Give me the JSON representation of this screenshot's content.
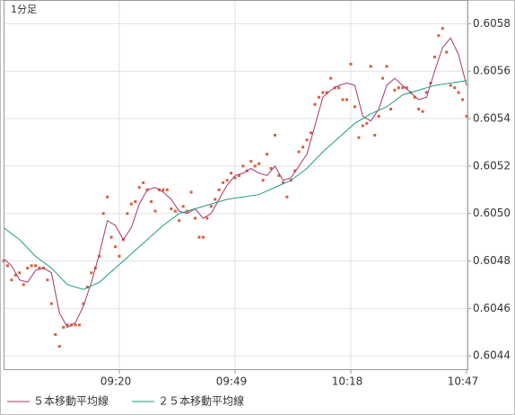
{
  "chart_data": {
    "type": "line",
    "title": "1分足",
    "title_color": "#3aa6dd",
    "xlim": [
      0,
      116
    ],
    "xticks": [
      {
        "value": 29,
        "label": "09:20"
      },
      {
        "value": 58,
        "label": "09:49"
      },
      {
        "value": 87,
        "label": "10:18"
      },
      {
        "value": 116,
        "label": "10:47"
      }
    ],
    "ylim": [
      0.60434,
      0.6059
    ],
    "yticks": [
      0.6044,
      0.6046,
      0.6048,
      {
        "value": 0.605,
        "label": "0.6050"
      },
      0.6052,
      0.6054,
      0.6056,
      0.6058
    ],
    "grid": true,
    "series": [
      {
        "mode": "markers",
        "color": "#d9603b",
        "x": [
          0,
          1,
          2,
          3,
          4,
          5,
          6,
          7,
          8,
          9,
          10,
          11,
          12,
          13,
          14,
          15,
          16,
          17,
          18,
          19,
          20,
          21,
          22,
          23,
          24,
          25,
          26,
          27,
          28,
          29,
          30,
          31,
          32,
          33,
          34,
          35,
          36,
          37,
          38,
          39,
          40,
          41,
          42,
          43,
          44,
          45,
          46,
          47,
          48,
          49,
          50,
          51,
          52,
          53,
          54,
          55,
          56,
          57,
          58,
          59,
          60,
          61,
          62,
          63,
          64,
          65,
          66,
          67,
          68,
          69,
          70,
          71,
          72,
          73,
          74,
          75,
          76,
          77,
          78,
          79,
          80,
          81,
          82,
          83,
          84,
          85,
          86,
          87,
          88,
          89,
          90,
          91,
          92,
          93,
          94,
          95,
          96,
          97,
          98,
          99,
          100,
          101,
          102,
          103,
          104,
          105,
          106,
          107,
          108,
          109,
          110,
          111,
          112,
          113,
          114,
          115,
          116
        ],
        "values": [
          0.6048,
          0.60478,
          0.60472,
          0.60474,
          0.60475,
          0.6047,
          0.60477,
          0.60478,
          0.60478,
          0.60477,
          0.60477,
          0.60472,
          0.60462,
          0.60449,
          0.60444,
          0.60452,
          0.60453,
          0.60453,
          0.60453,
          0.60453,
          0.60462,
          0.60469,
          0.60475,
          0.60477,
          0.60482,
          0.605,
          0.60507,
          0.6049,
          0.60486,
          0.60482,
          0.60489,
          0.605,
          0.60504,
          0.60505,
          0.60511,
          0.60513,
          0.6051,
          0.60505,
          0.60501,
          0.6051,
          0.6051,
          0.6051,
          0.60502,
          0.60501,
          0.60497,
          0.60503,
          0.60501,
          0.60509,
          0.60498,
          0.6049,
          0.6049,
          0.60498,
          0.60503,
          0.60506,
          0.6051,
          0.60513,
          0.60514,
          0.60517,
          0.60515,
          0.60516,
          0.6052,
          0.60518,
          0.60522,
          0.6052,
          0.60521,
          0.60514,
          0.60525,
          0.60519,
          0.60533,
          0.60516,
          0.60513,
          0.60507,
          0.60514,
          0.60518,
          0.60526,
          0.60528,
          0.60531,
          0.60534,
          0.60546,
          0.60549,
          0.60551,
          0.60551,
          0.60557,
          0.60553,
          0.60553,
          0.60548,
          0.60548,
          0.60563,
          0.60545,
          0.60532,
          0.60537,
          0.60538,
          0.60562,
          0.60533,
          0.60541,
          0.60557,
          0.60562,
          0.60544,
          0.60552,
          0.60553,
          0.60553,
          0.60553,
          0.60551,
          0.60549,
          0.60544,
          0.60543,
          0.60551,
          0.60555,
          0.60566,
          0.60575,
          0.60578,
          0.60568,
          0.60554,
          0.60553,
          0.60551,
          0.60548,
          0.60541
        ]
      },
      {
        "mode": "line",
        "name": "５本移動平均線",
        "color": "#a8346e",
        "x": [
          0,
          2,
          4,
          6,
          8,
          10,
          12,
          14,
          16,
          18,
          20,
          22,
          24,
          26,
          28,
          30,
          32,
          34,
          36,
          38,
          40,
          42,
          44,
          46,
          48,
          50,
          52,
          54,
          56,
          58,
          60,
          62,
          64,
          66,
          68,
          70,
          72,
          74,
          76,
          78,
          80,
          82,
          84,
          86,
          88,
          90,
          92,
          94,
          96,
          98,
          100,
          102,
          104,
          106,
          108,
          110,
          112,
          114,
          116
        ],
        "values": [
          0.60481,
          0.60478,
          0.60472,
          0.60471,
          0.60476,
          0.60477,
          0.60475,
          0.60458,
          0.60452,
          0.60454,
          0.60461,
          0.60471,
          0.60483,
          0.60497,
          0.60495,
          0.60489,
          0.60494,
          0.60504,
          0.6051,
          0.60511,
          0.60509,
          0.60506,
          0.60501,
          0.605,
          0.60502,
          0.60498,
          0.605,
          0.60506,
          0.60512,
          0.60516,
          0.60517,
          0.60519,
          0.60517,
          0.60516,
          0.6052,
          0.60514,
          0.60515,
          0.6052,
          0.60525,
          0.60537,
          0.60549,
          0.60552,
          0.60554,
          0.60555,
          0.60554,
          0.60541,
          0.60539,
          0.60544,
          0.60554,
          0.60557,
          0.60554,
          0.60551,
          0.60548,
          0.60549,
          0.6056,
          0.6057,
          0.60574,
          0.60567,
          0.60554
        ]
      },
      {
        "mode": "line",
        "name": "２５本移動平均線",
        "color": "#1d9e7e",
        "x": [
          0,
          4,
          8,
          12,
          16,
          20,
          24,
          28,
          32,
          36,
          40,
          44,
          48,
          52,
          56,
          60,
          64,
          68,
          72,
          76,
          80,
          84,
          88,
          92,
          96,
          100,
          104,
          108,
          112,
          116
        ],
        "values": [
          0.60494,
          0.60489,
          0.60482,
          0.60477,
          0.6047,
          0.60468,
          0.60471,
          0.60477,
          0.60483,
          0.60489,
          0.60495,
          0.605,
          0.60502,
          0.60504,
          0.60506,
          0.60507,
          0.60508,
          0.60511,
          0.60514,
          0.60519,
          0.60526,
          0.60532,
          0.60538,
          0.60542,
          0.60545,
          0.6055,
          0.60552,
          0.60554,
          0.60555,
          0.60556
        ]
      }
    ]
  }
}
